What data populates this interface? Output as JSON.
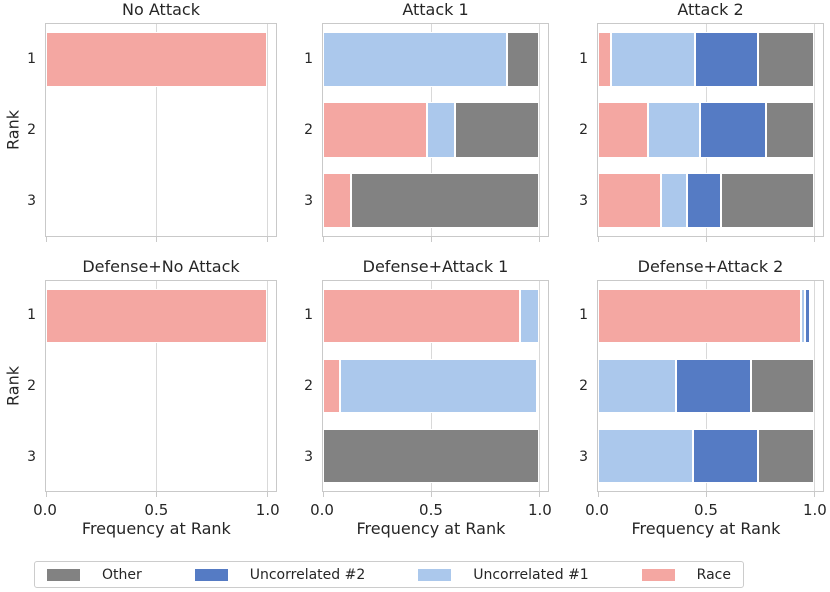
{
  "figure": {
    "ylabel": "Rank",
    "xlabel": "Frequency at Rank",
    "x_ticks": [
      "0.0",
      "0.5",
      "1.0"
    ],
    "y_ticks": [
      "1",
      "2",
      "3"
    ]
  },
  "series_colors": {
    "Race": "#f4a7a2",
    "Uncorrelated #1": "#abc8ec",
    "Uncorrelated #2": "#557bc4",
    "Other": "#828282"
  },
  "legend": {
    "items": [
      {
        "label": "Other",
        "color": "#828282"
      },
      {
        "label": "Uncorrelated #2",
        "color": "#557bc4"
      },
      {
        "label": "Uncorrelated #1",
        "color": "#abc8ec"
      },
      {
        "label": "Race",
        "color": "#f4a7a2"
      }
    ]
  },
  "chart_data": [
    {
      "type": "bar",
      "orientation": "horizontal",
      "title": "No Attack",
      "categories": [
        "1",
        "2",
        "3"
      ],
      "xlim": [
        0,
        1.04
      ],
      "grid": true,
      "stack_order": [
        "Race",
        "Uncorrelated #1",
        "Uncorrelated #2",
        "Other"
      ],
      "series": [
        {
          "name": "Race",
          "values": [
            1.0,
            0,
            0
          ]
        },
        {
          "name": "Uncorrelated #1",
          "values": [
            0,
            0,
            0
          ]
        },
        {
          "name": "Uncorrelated #2",
          "values": [
            0,
            0,
            0
          ]
        },
        {
          "name": "Other",
          "values": [
            0,
            0,
            0
          ]
        }
      ]
    },
    {
      "type": "bar",
      "orientation": "horizontal",
      "title": "Attack 1",
      "categories": [
        "1",
        "2",
        "3"
      ],
      "xlim": [
        0,
        1.04
      ],
      "grid": true,
      "stack_order": [
        "Race",
        "Uncorrelated #1",
        "Uncorrelated #2",
        "Other"
      ],
      "series": [
        {
          "name": "Race",
          "values": [
            0,
            0.48,
            0.13
          ]
        },
        {
          "name": "Uncorrelated #1",
          "values": [
            0.85,
            0.13,
            0
          ]
        },
        {
          "name": "Uncorrelated #2",
          "values": [
            0,
            0,
            0
          ]
        },
        {
          "name": "Other",
          "values": [
            0.15,
            0.39,
            0.87
          ]
        }
      ]
    },
    {
      "type": "bar",
      "orientation": "horizontal",
      "title": "Attack 2",
      "categories": [
        "1",
        "2",
        "3"
      ],
      "xlim": [
        0,
        1.04
      ],
      "grid": true,
      "stack_order": [
        "Race",
        "Uncorrelated #1",
        "Uncorrelated #2",
        "Other"
      ],
      "series": [
        {
          "name": "Race",
          "values": [
            0.06,
            0.23,
            0.29
          ]
        },
        {
          "name": "Uncorrelated #1",
          "values": [
            0.39,
            0.24,
            0.12
          ]
        },
        {
          "name": "Uncorrelated #2",
          "values": [
            0.29,
            0.31,
            0.16
          ]
        },
        {
          "name": "Other",
          "values": [
            0.26,
            0.22,
            0.43
          ]
        }
      ]
    },
    {
      "type": "bar",
      "orientation": "horizontal",
      "title": "Defense+No Attack",
      "categories": [
        "1",
        "2",
        "3"
      ],
      "xlim": [
        0,
        1.04
      ],
      "grid": true,
      "stack_order": [
        "Race",
        "Uncorrelated #1",
        "Uncorrelated #2",
        "Other"
      ],
      "series": [
        {
          "name": "Race",
          "values": [
            1.0,
            0,
            0
          ]
        },
        {
          "name": "Uncorrelated #1",
          "values": [
            0,
            0,
            0
          ]
        },
        {
          "name": "Uncorrelated #2",
          "values": [
            0,
            0,
            0
          ]
        },
        {
          "name": "Other",
          "values": [
            0,
            0,
            0
          ]
        }
      ]
    },
    {
      "type": "bar",
      "orientation": "horizontal",
      "title": "Defense+Attack 1",
      "categories": [
        "1",
        "2",
        "3"
      ],
      "xlim": [
        0,
        1.04
      ],
      "grid": true,
      "stack_order": [
        "Race",
        "Uncorrelated #1",
        "Uncorrelated #2",
        "Other"
      ],
      "series": [
        {
          "name": "Race",
          "values": [
            0.91,
            0.08,
            0
          ]
        },
        {
          "name": "Uncorrelated #1",
          "values": [
            0.09,
            0.91,
            0
          ]
        },
        {
          "name": "Uncorrelated #2",
          "values": [
            0,
            0,
            0
          ]
        },
        {
          "name": "Other",
          "values": [
            0,
            0.01,
            1.0
          ]
        }
      ]
    },
    {
      "type": "bar",
      "orientation": "horizontal",
      "title": "Defense+Attack 2",
      "categories": [
        "1",
        "2",
        "3"
      ],
      "xlim": [
        0,
        1.04
      ],
      "grid": true,
      "stack_order": [
        "Race",
        "Uncorrelated #1",
        "Uncorrelated #2",
        "Other"
      ],
      "series": [
        {
          "name": "Race",
          "values": [
            0.94,
            0,
            0
          ]
        },
        {
          "name": "Uncorrelated #1",
          "values": [
            0.02,
            0.36,
            0.44
          ]
        },
        {
          "name": "Uncorrelated #2",
          "values": [
            0.02,
            0.35,
            0.3
          ]
        },
        {
          "name": "Other",
          "values": [
            0,
            0.29,
            0.26
          ]
        }
      ]
    }
  ]
}
